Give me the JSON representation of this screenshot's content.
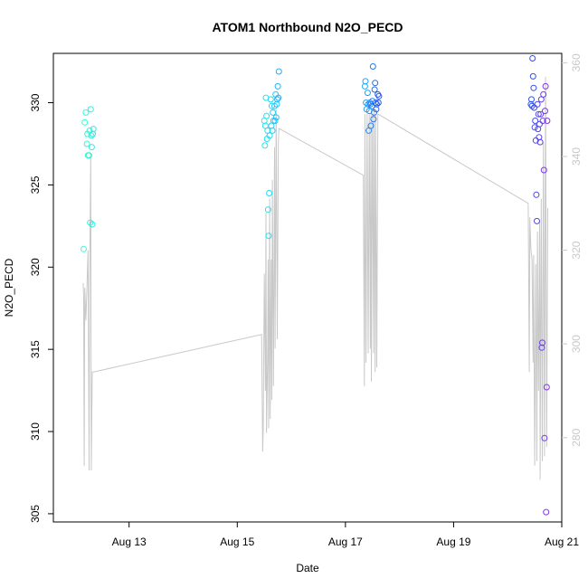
{
  "chart_data": {
    "type": "scatter",
    "title": "ATOM1 Northbound N2O_PECD",
    "xlabel": "Date",
    "ylabel": "N2O_PECD",
    "x_unit": "days in August",
    "xlim": [
      11.6,
      21.0
    ],
    "ylim": [
      304.5,
      333.0
    ],
    "y2lim": [
      262,
      362
    ],
    "x_ticks": [
      13,
      15,
      17,
      19,
      21
    ],
    "x_tick_labels": [
      "Aug 13",
      "Aug 15",
      "Aug 17",
      "Aug 19",
      "Aug 21"
    ],
    "y_ticks": [
      305,
      310,
      315,
      320,
      325,
      330
    ],
    "y2_ticks": [
      280,
      300,
      320,
      340,
      360
    ],
    "colors": {
      "axis": "#000000",
      "right_axis": "#c8c8c8",
      "line": "#c8c8c8",
      "point_gradient": [
        "#33ffcc",
        "#22ccff",
        "#2255ee",
        "#8833ee"
      ]
    },
    "points": [
      [
        12.16,
        321.1
      ],
      [
        12.18,
        328.8
      ],
      [
        12.2,
        329.4
      ],
      [
        12.22,
        327.5
      ],
      [
        12.23,
        328.1
      ],
      [
        12.24,
        326.8
      ],
      [
        12.26,
        326.8
      ],
      [
        12.27,
        328.3
      ],
      [
        12.28,
        322.7
      ],
      [
        12.29,
        329.6
      ],
      [
        12.3,
        328.0
      ],
      [
        12.31,
        327.3
      ],
      [
        12.32,
        322.6
      ],
      [
        12.33,
        328.1
      ],
      [
        12.34,
        328.4
      ],
      [
        15.5,
        328.9
      ],
      [
        15.51,
        327.4
      ],
      [
        15.52,
        328.6
      ],
      [
        15.53,
        330.3
      ],
      [
        15.54,
        329.2
      ],
      [
        15.55,
        327.8
      ],
      [
        15.56,
        328.3
      ],
      [
        15.57,
        323.5
      ],
      [
        15.58,
        321.9
      ],
      [
        15.59,
        324.5
      ],
      [
        15.6,
        328.0
      ],
      [
        15.62,
        330.2
      ],
      [
        15.63,
        328.6
      ],
      [
        15.64,
        329.8
      ],
      [
        15.65,
        328.3
      ],
      [
        15.66,
        329.4
      ],
      [
        15.67,
        328.9
      ],
      [
        15.69,
        329.8
      ],
      [
        15.7,
        328.9
      ],
      [
        15.71,
        330.5
      ],
      [
        15.72,
        329.1
      ],
      [
        15.73,
        329.9
      ],
      [
        15.74,
        330.2
      ],
      [
        15.75,
        331.0
      ],
      [
        15.76,
        330.3
      ],
      [
        15.77,
        331.9
      ],
      [
        17.36,
        331.0
      ],
      [
        17.37,
        331.3
      ],
      [
        17.38,
        330.0
      ],
      [
        17.39,
        329.6
      ],
      [
        17.41,
        330.6
      ],
      [
        17.42,
        329.9
      ],
      [
        17.43,
        328.3
      ],
      [
        17.44,
        329.5
      ],
      [
        17.45,
        330.0
      ],
      [
        17.46,
        329.9
      ],
      [
        17.47,
        328.6
      ],
      [
        17.49,
        329.8
      ],
      [
        17.5,
        330.1
      ],
      [
        17.51,
        332.2
      ],
      [
        17.52,
        329.0
      ],
      [
        17.53,
        329.4
      ],
      [
        17.54,
        330.8
      ],
      [
        17.55,
        331.2
      ],
      [
        17.56,
        330.0
      ],
      [
        17.57,
        329.6
      ],
      [
        17.58,
        329.9
      ],
      [
        17.6,
        330.5
      ],
      [
        17.61,
        330.0
      ],
      [
        17.62,
        330.4
      ],
      [
        20.43,
        329.9
      ],
      [
        20.44,
        330.2
      ],
      [
        20.45,
        329.8
      ],
      [
        20.46,
        332.7
      ],
      [
        20.47,
        331.6
      ],
      [
        20.48,
        330.9
      ],
      [
        20.49,
        329.7
      ],
      [
        20.5,
        328.5
      ],
      [
        20.51,
        328.9
      ],
      [
        20.52,
        327.7
      ],
      [
        20.53,
        324.4
      ],
      [
        20.54,
        322.8
      ],
      [
        20.55,
        329.9
      ],
      [
        20.56,
        328.4
      ],
      [
        20.57,
        329.3
      ],
      [
        20.58,
        327.9
      ],
      [
        20.59,
        328.7
      ],
      [
        20.6,
        327.6
      ],
      [
        20.61,
        329.3
      ],
      [
        20.62,
        330.2
      ],
      [
        20.63,
        315.1
      ],
      [
        20.64,
        315.4
      ],
      [
        20.65,
        328.9
      ],
      [
        20.66,
        330.5
      ],
      [
        20.67,
        325.9
      ],
      [
        20.68,
        309.6
      ],
      [
        20.69,
        329.5
      ],
      [
        20.7,
        331.0
      ],
      [
        20.71,
        305.1
      ],
      [
        20.72,
        312.7
      ],
      [
        20.73,
        328.9
      ]
    ],
    "line_y2": [
      [
        12.15,
        313
      ],
      [
        12.16,
        310
      ],
      [
        12.17,
        274
      ],
      [
        12.18,
        312
      ],
      [
        12.2,
        305
      ],
      [
        12.22,
        312
      ],
      [
        12.24,
        320
      ],
      [
        12.26,
        273
      ],
      [
        12.27,
        314
      ],
      [
        12.29,
        340
      ],
      [
        12.3,
        273
      ],
      [
        12.32,
        294
      ],
      [
        12.34,
        294
      ],
      [
        15.45,
        302
      ],
      [
        15.47,
        277
      ],
      [
        15.48,
        282
      ],
      [
        15.5,
        315
      ],
      [
        15.52,
        290
      ],
      [
        15.53,
        328
      ],
      [
        15.54,
        281
      ],
      [
        15.56,
        297
      ],
      [
        15.57,
        318
      ],
      [
        15.58,
        282
      ],
      [
        15.6,
        331
      ],
      [
        15.61,
        284
      ],
      [
        15.63,
        318
      ],
      [
        15.64,
        288
      ],
      [
        15.65,
        335
      ],
      [
        15.67,
        291
      ],
      [
        15.69,
        342
      ],
      [
        15.7,
        299
      ],
      [
        15.72,
        350
      ],
      [
        15.74,
        301
      ],
      [
        15.76,
        343
      ],
      [
        15.77,
        346
      ],
      [
        17.33,
        336
      ],
      [
        17.35,
        291
      ],
      [
        17.36,
        349
      ],
      [
        17.38,
        296
      ],
      [
        17.4,
        349
      ],
      [
        17.42,
        298
      ],
      [
        17.44,
        349
      ],
      [
        17.46,
        299
      ],
      [
        17.47,
        349
      ],
      [
        17.48,
        292
      ],
      [
        17.5,
        349
      ],
      [
        17.52,
        298
      ],
      [
        17.53,
        350
      ],
      [
        17.55,
        294
      ],
      [
        17.56,
        349
      ],
      [
        17.58,
        295
      ],
      [
        17.6,
        349
      ],
      [
        17.61,
        349
      ],
      [
        20.38,
        330
      ],
      [
        20.4,
        294
      ],
      [
        20.41,
        327
      ],
      [
        20.43,
        320
      ],
      [
        20.45,
        318
      ],
      [
        20.47,
        296
      ],
      [
        20.48,
        319
      ],
      [
        20.5,
        274
      ],
      [
        20.52,
        317
      ],
      [
        20.54,
        275
      ],
      [
        20.55,
        324
      ],
      [
        20.57,
        290
      ],
      [
        20.59,
        326
      ],
      [
        20.6,
        271
      ],
      [
        20.62,
        331
      ],
      [
        20.64,
        275
      ],
      [
        20.66,
        343
      ],
      [
        20.68,
        276
      ],
      [
        20.7,
        357
      ],
      [
        20.72,
        278
      ],
      [
        20.74,
        329
      ]
    ]
  }
}
